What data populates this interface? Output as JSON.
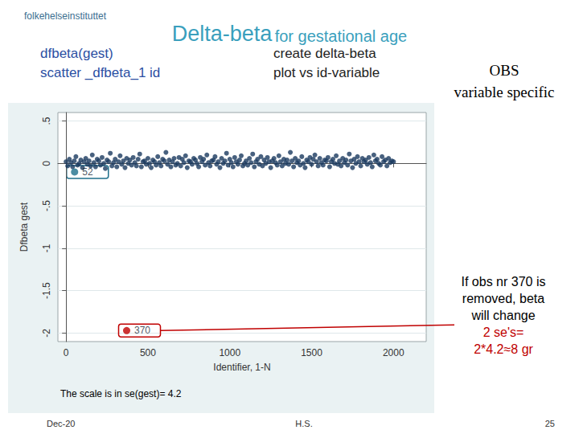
{
  "chart_data": {
    "type": "scatter",
    "title": "Delta-beta",
    "subtitle": "for gestational age",
    "x_label": "Identifier, 1-N",
    "y_label": "Dfbeta gest",
    "xlim": [
      -50,
      2200
    ],
    "xticks": [
      0,
      500,
      1000,
      1500,
      2000
    ],
    "ylim": [
      -2.1,
      0.6
    ],
    "yticks": [
      -2,
      -1.5,
      -1,
      {
        "value": -0.5,
        "label": "-.5"
      },
      0,
      {
        "value": 0.5,
        "label": ".5"
      }
    ],
    "grid": true,
    "series": [
      {
        "color": "#1a3a5f",
        "marker": "circle",
        "x": [
          0,
          10,
          20,
          30,
          40,
          50,
          60,
          70,
          80,
          90,
          100,
          110,
          120,
          130,
          140,
          150,
          160,
          170,
          180,
          190,
          200,
          210,
          220,
          230,
          240,
          250,
          260,
          270,
          280,
          290,
          300,
          310,
          320,
          330,
          340,
          350,
          360,
          370,
          380,
          390,
          400,
          410,
          420,
          430,
          440,
          450,
          460,
          470,
          480,
          490,
          500,
          510,
          520,
          530,
          540,
          550,
          560,
          570,
          580,
          590,
          600,
          610,
          620,
          630,
          640,
          650,
          660,
          670,
          680,
          690,
          700,
          710,
          720,
          730,
          740,
          750,
          760,
          770,
          780,
          790,
          800,
          810,
          820,
          830,
          840,
          850,
          860,
          870,
          880,
          890,
          900,
          910,
          920,
          930,
          940,
          950,
          960,
          970,
          980,
          990,
          1000,
          1010,
          1020,
          1030,
          1040,
          1050,
          1060,
          1070,
          1080,
          1090,
          1100,
          1110,
          1120,
          1130,
          1140,
          1150,
          1160,
          1170,
          1180,
          1190,
          1200,
          1210,
          1220,
          1230,
          1240,
          1250,
          1260,
          1270,
          1280,
          1290,
          1300,
          1310,
          1320,
          1330,
          1340,
          1350,
          1360,
          1370,
          1380,
          1390,
          1400,
          1410,
          1420,
          1430,
          1440,
          1450,
          1460,
          1470,
          1480,
          1490,
          1500,
          1510,
          1520,
          1530,
          1540,
          1550,
          1560,
          1570,
          1580,
          1590,
          1600,
          1610,
          1620,
          1630,
          1640,
          1650,
          1660,
          1670,
          1680,
          1690,
          1700,
          1710,
          1720,
          1730,
          1740,
          1750,
          1760,
          1770,
          1780,
          1790,
          1800,
          1810,
          1820,
          1830,
          1840,
          1850,
          1860,
          1870,
          1880,
          1890,
          1900,
          1910,
          1920,
          1930,
          1940,
          1950,
          1960,
          1970,
          1980,
          1990,
          2000
        ],
        "values": [
          0.02,
          -0.03,
          0.05,
          0.01,
          -0.04,
          0.03,
          0.08,
          -0.02,
          0.0,
          0.04,
          -0.05,
          0.02,
          0.06,
          -0.01,
          0.03,
          -0.03,
          0.1,
          0.01,
          -0.04,
          0.05,
          0.03,
          -0.02,
          0.07,
          0.0,
          -0.06,
          0.04,
          0.02,
          0.12,
          -0.03,
          0.01,
          0.05,
          -0.04,
          0.02,
          0.09,
          -0.01,
          0.03,
          -0.05,
          0.06,
          0.0,
          0.04,
          -0.02,
          0.07,
          0.01,
          -0.03,
          0.05,
          0.11,
          -0.04,
          0.02,
          0.03,
          -0.01,
          0.06,
          0.0,
          -0.05,
          0.04,
          0.02,
          -0.02,
          0.08,
          0.01,
          -0.03,
          0.05,
          0.03,
          0.13,
          -0.01,
          0.04,
          -0.04,
          0.02,
          0.06,
          -0.02,
          0.0,
          0.07,
          -0.03,
          0.05,
          0.01,
          0.09,
          -0.05,
          0.03,
          0.02,
          -0.01,
          0.06,
          0.04,
          0.0,
          -0.04,
          0.07,
          0.02,
          0.05,
          -0.02,
          0.1,
          0.01,
          -0.03,
          0.03,
          0.04,
          0.08,
          -0.01,
          0.02,
          -0.05,
          0.06,
          0.0,
          0.03,
          0.12,
          -0.02,
          0.05,
          0.01,
          -0.04,
          0.07,
          0.02,
          -0.01,
          0.04,
          0.09,
          -0.03,
          0.0,
          0.03,
          -0.02,
          0.06,
          0.01,
          0.11,
          -0.04,
          0.02,
          0.05,
          -0.01,
          0.08,
          -0.03,
          0.04,
          0.0,
          0.07,
          0.02,
          -0.05,
          0.03,
          0.06,
          0.01,
          -0.02,
          0.09,
          0.02,
          -0.03,
          0.05,
          0.0,
          0.04,
          -0.01,
          0.13,
          0.03,
          -0.04,
          0.06,
          0.01,
          0.03,
          -0.02,
          0.08,
          0.0,
          -0.05,
          0.04,
          0.02,
          0.07,
          -0.01,
          0.05,
          0.1,
          0.02,
          -0.03,
          0.06,
          0.01,
          -0.02,
          0.04,
          0.03,
          0.07,
          -0.04,
          0.02,
          0.05,
          0.0,
          0.09,
          -0.01,
          0.03,
          -0.03,
          0.06,
          0.01,
          0.04,
          -0.02,
          0.11,
          0.03,
          -0.05,
          0.05,
          0.0,
          0.08,
          0.02,
          -0.03,
          0.06,
          0.02,
          0.04,
          -0.01,
          0.07,
          0.01,
          -0.04,
          0.1,
          0.03,
          0.05,
          0.0,
          -0.02,
          0.08,
          0.02,
          0.04,
          -0.03,
          0.06,
          0.01,
          0.03,
          0.02
        ]
      }
    ],
    "labelled_points": [
      {
        "x": 52,
        "y": -0.1,
        "label": "52",
        "color": "#1f6f8b"
      },
      {
        "x": 370,
        "y": -1.97,
        "label": "370",
        "color": "#c00000"
      }
    ],
    "annotations": [
      {
        "lines": [
          "If obs nr 370 is",
          "removed, beta",
          "will change"
        ],
        "color": "#000000"
      },
      {
        "lines": [
          "2 se's=",
          "2*4.2≈8 gr"
        ],
        "color": "#c00000"
      },
      {
        "lines": [
          "The scale is in se(gest)= 4.2"
        ],
        "color": "#000000"
      }
    ]
  },
  "slide": {
    "logo": "folkehelseinstituttet",
    "header_notes": [
      {
        "lines": [
          "dfbeta(gest)",
          "scatter _dfbeta_1 id"
        ],
        "color": "#2b4fa3"
      },
      {
        "lines": [
          "create delta-beta",
          "plot vs id-variable"
        ],
        "color": "#222222"
      },
      {
        "lines": [
          "OBS",
          "variable specific"
        ],
        "color": "#000000"
      }
    ],
    "footer": [
      "Dec-20",
      "H.S.",
      "25"
    ]
  }
}
